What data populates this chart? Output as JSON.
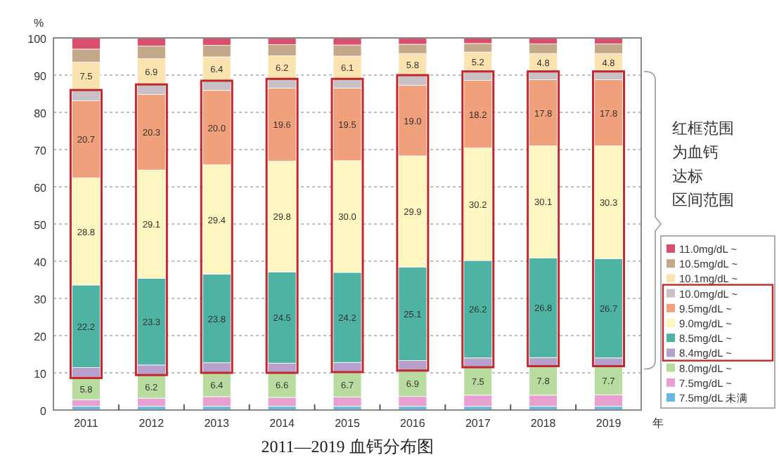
{
  "chart_data": {
    "type": "bar",
    "stacked": true,
    "title": "2011—2019 血钙分布图",
    "ylabel": "%",
    "xlabel": "年",
    "categories": [
      "2011",
      "2012",
      "2013",
      "2014",
      "2015",
      "2016",
      "2017",
      "2018",
      "2019"
    ],
    "ylim": [
      0,
      100
    ],
    "yticks": [
      0,
      10,
      20,
      30,
      40,
      50,
      60,
      70,
      80,
      90,
      100
    ],
    "grid": "y",
    "legend": "right",
    "annotations": [
      "红框范围",
      "为血钙",
      "达标",
      "区间范围"
    ],
    "series": [
      {
        "name": "7.5mg/dL 未满",
        "color": "#6ab8e0",
        "values": [
          1.0,
          1.0,
          1.0,
          1.0,
          1.0,
          1.0,
          1.0,
          1.0,
          1.0
        ],
        "value_labels": [
          null,
          null,
          null,
          null,
          null,
          null,
          null,
          null,
          null
        ]
      },
      {
        "name": "7.5mg/dL ~",
        "color": "#e8a0d0",
        "values": [
          1.8,
          2.2,
          2.6,
          2.4,
          2.5,
          2.7,
          3.0,
          3.0,
          3.1
        ],
        "value_labels": [
          null,
          null,
          null,
          null,
          null,
          null,
          null,
          null,
          null
        ]
      },
      {
        "name": "8.0mg/dL ~",
        "color": "#b8dca0",
        "values": [
          5.8,
          6.2,
          6.4,
          6.6,
          6.7,
          6.9,
          7.5,
          7.8,
          7.7
        ],
        "value_labels": [
          "5.8",
          "6.2",
          "6.4",
          "6.6",
          "6.7",
          "6.9",
          "7.5",
          "7.8",
          "7.7"
        ]
      },
      {
        "name": "8.4mg/dL ~",
        "color": "#b8a0cc",
        "values": [
          2.8,
          2.7,
          2.7,
          2.6,
          2.6,
          2.7,
          2.5,
          2.3,
          2.2
        ],
        "value_labels": [
          null,
          null,
          null,
          null,
          null,
          null,
          null,
          null,
          null
        ]
      },
      {
        "name": "8.5mg/dL ~",
        "color": "#4fb3a4",
        "values": [
          22.2,
          23.3,
          23.8,
          24.5,
          24.2,
          25.1,
          26.2,
          26.8,
          26.7
        ],
        "value_labels": [
          "22.2",
          "23.3",
          "23.8",
          "24.5",
          "24.2",
          "25.1",
          "26.2",
          "26.8",
          "26.7"
        ]
      },
      {
        "name": "9.0mg/dL ~",
        "color": "#fdf6c0",
        "values": [
          28.8,
          29.1,
          29.4,
          29.8,
          30.0,
          29.9,
          30.2,
          30.1,
          30.3
        ],
        "value_labels": [
          "28.8",
          "29.1",
          "29.4",
          "29.8",
          "30.0",
          "29.9",
          "30.2",
          "30.1",
          "30.3"
        ]
      },
      {
        "name": "9.5mg/dL ~",
        "color": "#f0a07a",
        "values": [
          20.7,
          20.3,
          20.0,
          19.6,
          19.5,
          19.0,
          18.2,
          17.8,
          17.8
        ],
        "value_labels": [
          "20.7",
          "20.3",
          "20.0",
          "19.6",
          "19.5",
          "19.0",
          "18.2",
          "17.8",
          "17.8"
        ]
      },
      {
        "name": "10.0mg/dL ~",
        "color": "#c8c0c4",
        "values": [
          2.9,
          2.7,
          2.6,
          2.5,
          2.5,
          2.7,
          2.4,
          2.2,
          2.2
        ],
        "value_labels": [
          null,
          null,
          null,
          null,
          null,
          null,
          null,
          null,
          null
        ]
      },
      {
        "name": "10.1mg/dL ~",
        "color": "#fbe3b0",
        "values": [
          7.5,
          6.9,
          6.4,
          6.2,
          6.1,
          5.8,
          5.2,
          4.8,
          4.8
        ],
        "value_labels": [
          "7.5",
          "6.9",
          "6.4",
          "6.2",
          "6.1",
          "5.8",
          "5.2",
          "4.8",
          "4.8"
        ]
      },
      {
        "name": "10.5mg/dL ~",
        "color": "#c4a88a",
        "values": [
          3.5,
          3.4,
          3.1,
          3.0,
          3.0,
          2.5,
          2.3,
          2.6,
          2.6
        ],
        "value_labels": [
          null,
          null,
          null,
          null,
          null,
          null,
          null,
          null,
          null
        ]
      },
      {
        "name": "11.0mg/dL ~",
        "color": "#d9506e",
        "values": [
          3.0,
          2.2,
          2.0,
          1.8,
          1.9,
          1.7,
          1.5,
          1.6,
          1.6
        ],
        "value_labels": [
          null,
          null,
          null,
          null,
          null,
          null,
          null,
          null,
          null
        ]
      }
    ]
  }
}
